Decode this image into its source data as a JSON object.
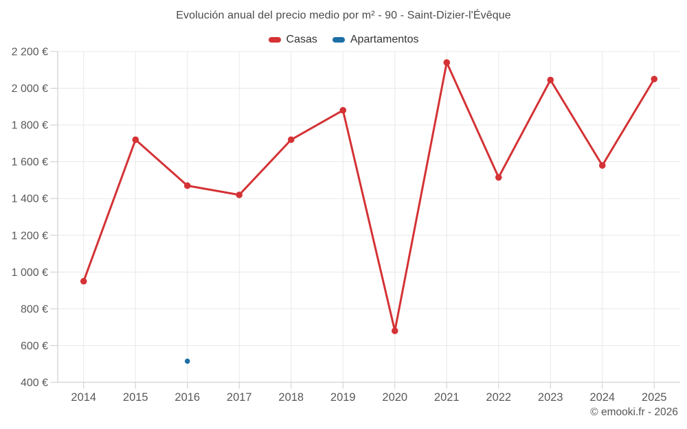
{
  "title": "Evolución anual del precio medio por m² - 90 - Saint-Dizier-l'Évêque",
  "watermark": "© emooki.fr - 2026",
  "colors": {
    "casas": "#d43235",
    "apartamentos": "#1d6fa5",
    "grid": "#e8e8e8",
    "axis": "#c6c6c6",
    "tick": "#cccccc",
    "axis_label": "#595959"
  },
  "legend": [
    {
      "label": "Casas",
      "color": "#d43235"
    },
    {
      "label": "Apartamentos",
      "color": "#1d6fa5"
    }
  ],
  "chart_data": {
    "type": "line",
    "title": "Evolución anual del precio medio por m² - 90 - Saint-Dizier-l'Évêque",
    "x_labels": [
      "2014",
      "2015",
      "2016",
      "2017",
      "2018",
      "2019",
      "2020",
      "2021",
      "2022",
      "2023",
      "2024",
      "2025"
    ],
    "series": [
      {
        "name": "Casas",
        "color": "#d43235",
        "values": [
          950,
          1720,
          1470,
          1420,
          1720,
          1880,
          680,
          2140,
          1515,
          2045,
          1580,
          2050
        ]
      },
      {
        "name": "Apartamentos",
        "color": "#1d6fa5",
        "values": [
          null,
          null,
          515,
          null,
          null,
          null,
          null,
          null,
          null,
          null,
          null,
          null
        ]
      }
    ],
    "ylabel": "",
    "xlabel": "",
    "ylim": [
      400,
      2200
    ],
    "y_step": 200,
    "y_tick_labels": [
      "400 €",
      "600 €",
      "800 €",
      "1 000 €",
      "1 200 €",
      "1 400 €",
      "1 600 €",
      "1 800 €",
      "2 000 €",
      "2 200 €"
    ],
    "grid": true,
    "legend_position": "top"
  }
}
